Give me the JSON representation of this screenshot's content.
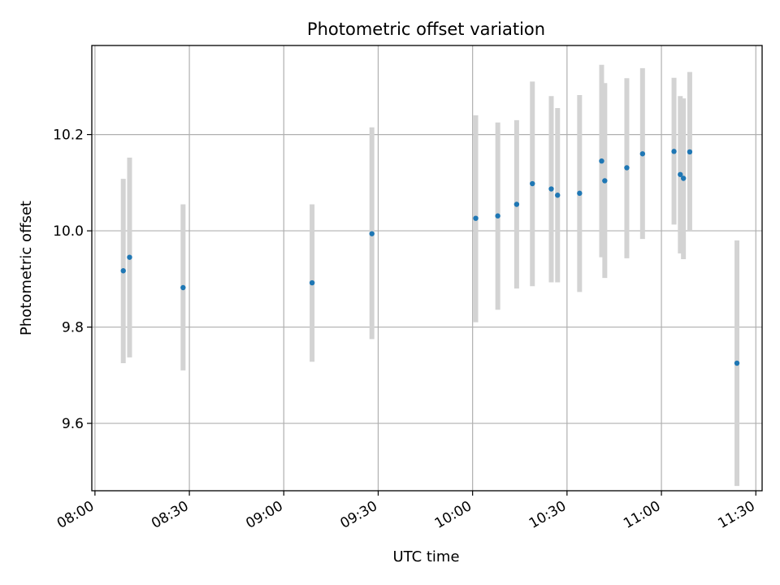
{
  "chart_data": {
    "type": "scatter",
    "title": "Photometric offset variation",
    "xlabel": "UTC time",
    "ylabel": "Photometric offset",
    "x_unit": "UTC time (HH:MM)",
    "xlim": [
      "07:59",
      "11:32"
    ],
    "ylim": [
      9.46,
      10.385
    ],
    "grid": true,
    "x_ticks": [
      "08:00",
      "08:30",
      "09:00",
      "09:30",
      "10:00",
      "10:30",
      "11:00",
      "11:30"
    ],
    "y_ticks": [
      "9.6",
      "9.8",
      "10.0",
      "10.2"
    ],
    "y_tick_values": [
      9.6,
      9.8,
      10.0,
      10.2
    ],
    "colors": {
      "marker": "#1f77b4",
      "errorbar": "#d3d3d3",
      "grid": "#b0b0b0"
    },
    "points": [
      {
        "t": "08:09",
        "y": 9.917,
        "lo": 9.725,
        "hi": 10.108
      },
      {
        "t": "08:11",
        "y": 9.945,
        "lo": 9.737,
        "hi": 10.152
      },
      {
        "t": "08:28",
        "y": 9.882,
        "lo": 9.71,
        "hi": 10.055
      },
      {
        "t": "09:09",
        "y": 9.892,
        "lo": 9.728,
        "hi": 10.055
      },
      {
        "t": "09:28",
        "y": 9.994,
        "lo": 9.775,
        "hi": 10.215
      },
      {
        "t": "10:01",
        "y": 10.026,
        "lo": 9.81,
        "hi": 10.24
      },
      {
        "t": "10:08",
        "y": 10.031,
        "lo": 9.836,
        "hi": 10.225
      },
      {
        "t": "10:14",
        "y": 10.055,
        "lo": 9.88,
        "hi": 10.23
      },
      {
        "t": "10:19",
        "y": 10.098,
        "lo": 9.885,
        "hi": 10.31
      },
      {
        "t": "10:25",
        "y": 10.087,
        "lo": 9.893,
        "hi": 10.28
      },
      {
        "t": "10:27",
        "y": 10.074,
        "lo": 9.893,
        "hi": 10.255
      },
      {
        "t": "10:34",
        "y": 10.078,
        "lo": 9.873,
        "hi": 10.282
      },
      {
        "t": "10:41",
        "y": 10.145,
        "lo": 9.945,
        "hi": 10.345
      },
      {
        "t": "10:42",
        "y": 10.104,
        "lo": 9.902,
        "hi": 10.307
      },
      {
        "t": "10:49",
        "y": 10.131,
        "lo": 9.943,
        "hi": 10.317
      },
      {
        "t": "10:54",
        "y": 10.16,
        "lo": 9.983,
        "hi": 10.338
      },
      {
        "t": "11:04",
        "y": 10.165,
        "lo": 10.013,
        "hi": 10.318
      },
      {
        "t": "11:06",
        "y": 10.117,
        "lo": 9.953,
        "hi": 10.28
      },
      {
        "t": "11:07",
        "y": 10.109,
        "lo": 9.941,
        "hi": 10.275
      },
      {
        "t": "11:09",
        "y": 10.164,
        "lo": 10.0,
        "hi": 10.33
      },
      {
        "t": "11:24",
        "y": 9.725,
        "lo": 9.47,
        "hi": 9.98
      }
    ]
  }
}
